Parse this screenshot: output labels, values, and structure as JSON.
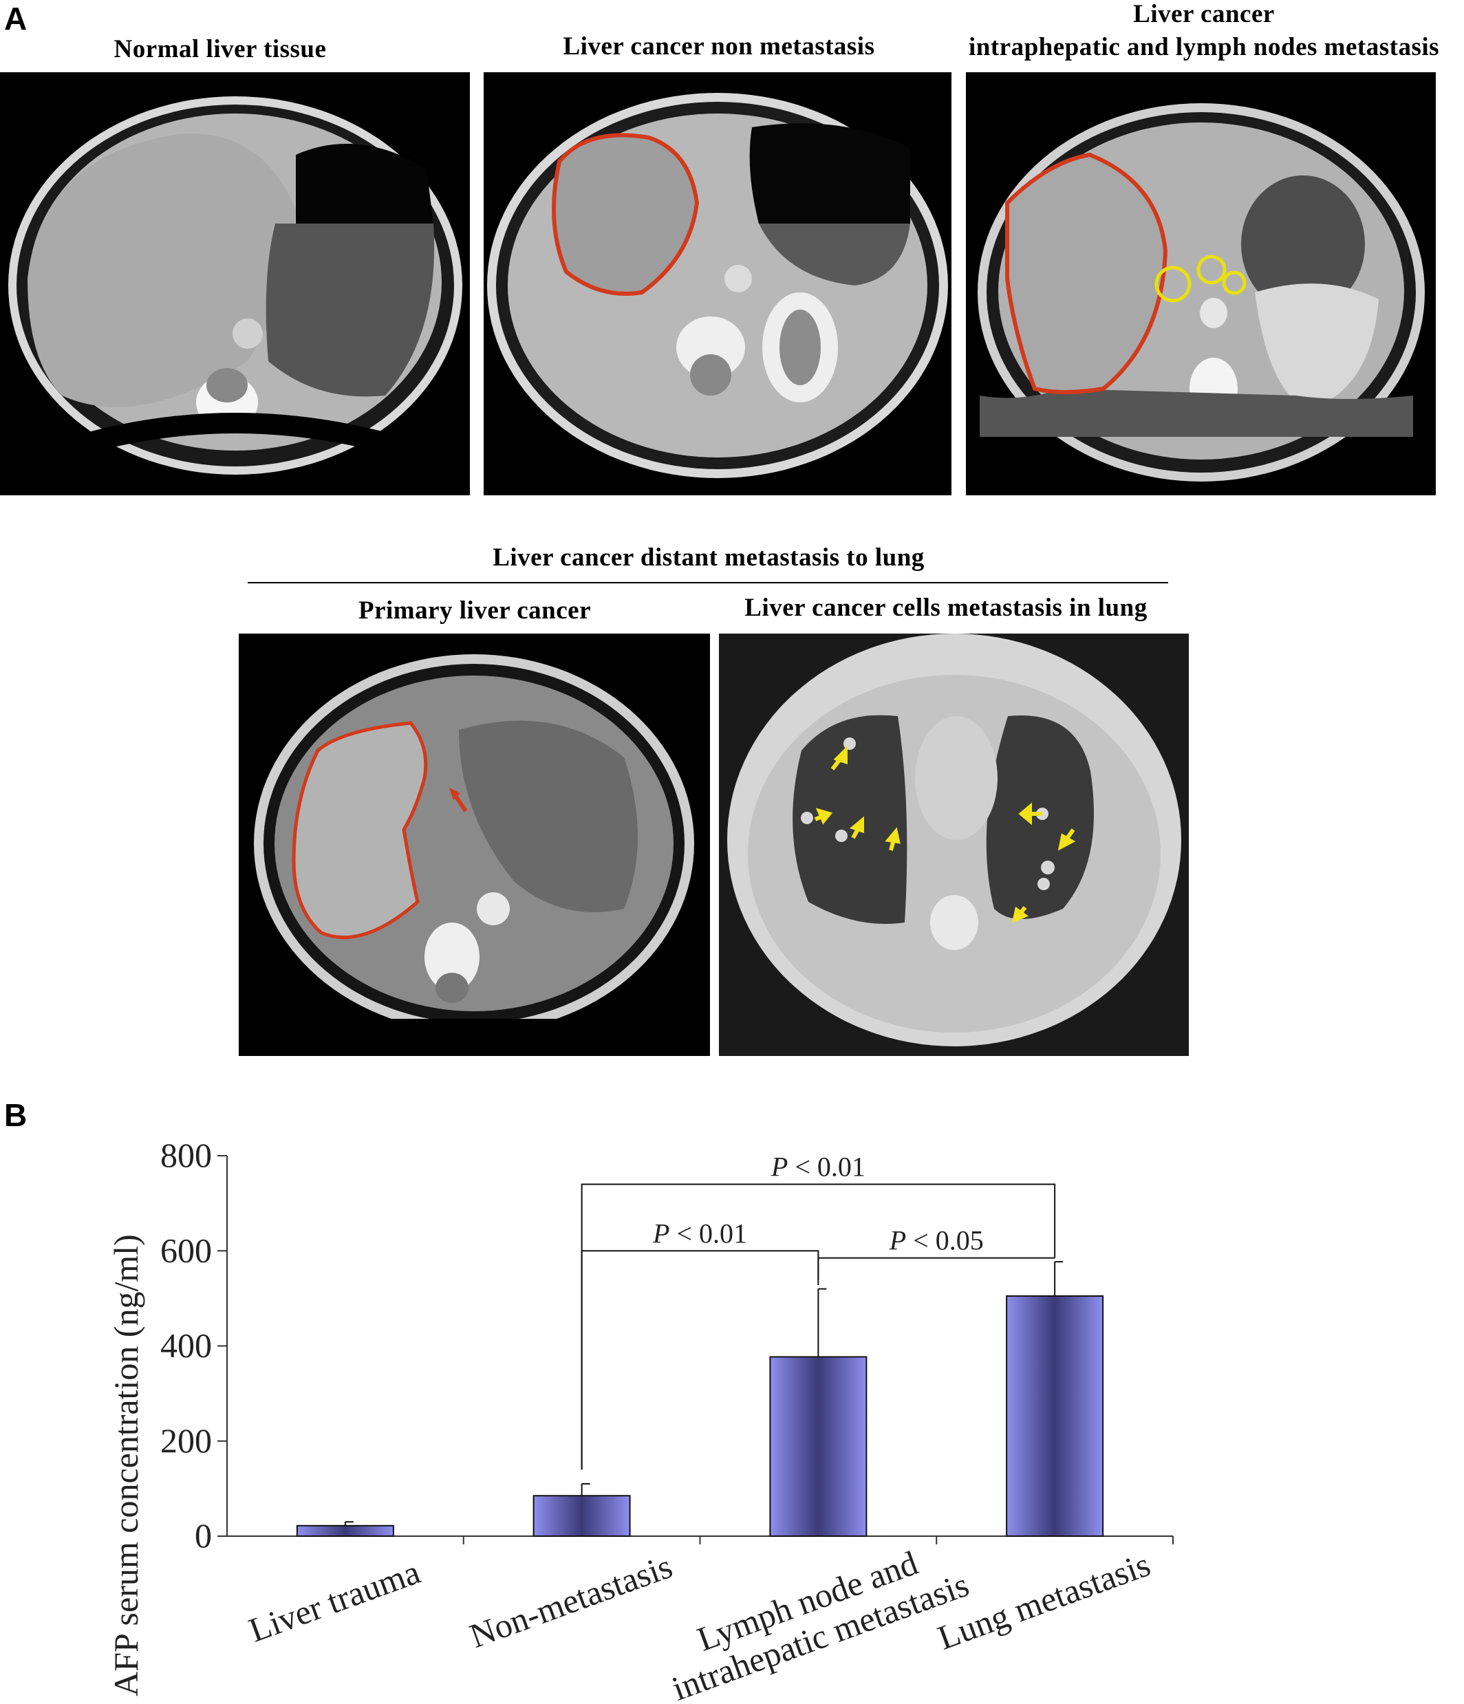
{
  "panel_a": {
    "letter": "A",
    "captions": {
      "normal": "Normal liver tissue",
      "non_metastasis": "Liver cancer non metastasis",
      "intrahepatic_line1": "Liver cancer",
      "intrahepatic_line2": "intraphepatic and lymph nodes metastasis",
      "distant_group": "Liver cancer distant metastasis to lung",
      "primary": "Primary liver cancer",
      "lung": "Liver cancer cells metastasis in lung"
    },
    "colors": {
      "tumor_outline": "#d23a1c",
      "lymph_node_circle": "#e8e010",
      "lung_arrow": "#f2e21a"
    }
  },
  "panel_b": {
    "letter": "B"
  },
  "chart_data": {
    "type": "bar",
    "categories": [
      "Liver trauma",
      "Non-metastasis",
      "Lymph node and intrahepatic metastasis",
      "Lung metastasis"
    ],
    "category_label_lines": [
      [
        "Liver trauma"
      ],
      [
        "Non-metastasis"
      ],
      [
        "Lymph node and",
        "intrahepatic metastasis"
      ],
      [
        "Lung metastasis"
      ]
    ],
    "values": [
      22,
      85,
      377,
      505
    ],
    "errors": [
      8,
      25,
      143,
      72
    ],
    "ylabel": "AFP serum concentration (ng/ml)",
    "ylim": [
      0,
      800
    ],
    "yticks": [
      0,
      200,
      400,
      600,
      800
    ],
    "grid": false,
    "bar_color": "#8f8fef",
    "significance": [
      {
        "from": 1,
        "to": 3,
        "label_p": "P",
        "label_rest": " < 0.01"
      },
      {
        "from": 1,
        "to": 2,
        "label_p": "P",
        "label_rest": " < 0.01"
      },
      {
        "from": 2,
        "to": 3,
        "label_p": "P",
        "label_rest": " < 0.05"
      }
    ]
  }
}
